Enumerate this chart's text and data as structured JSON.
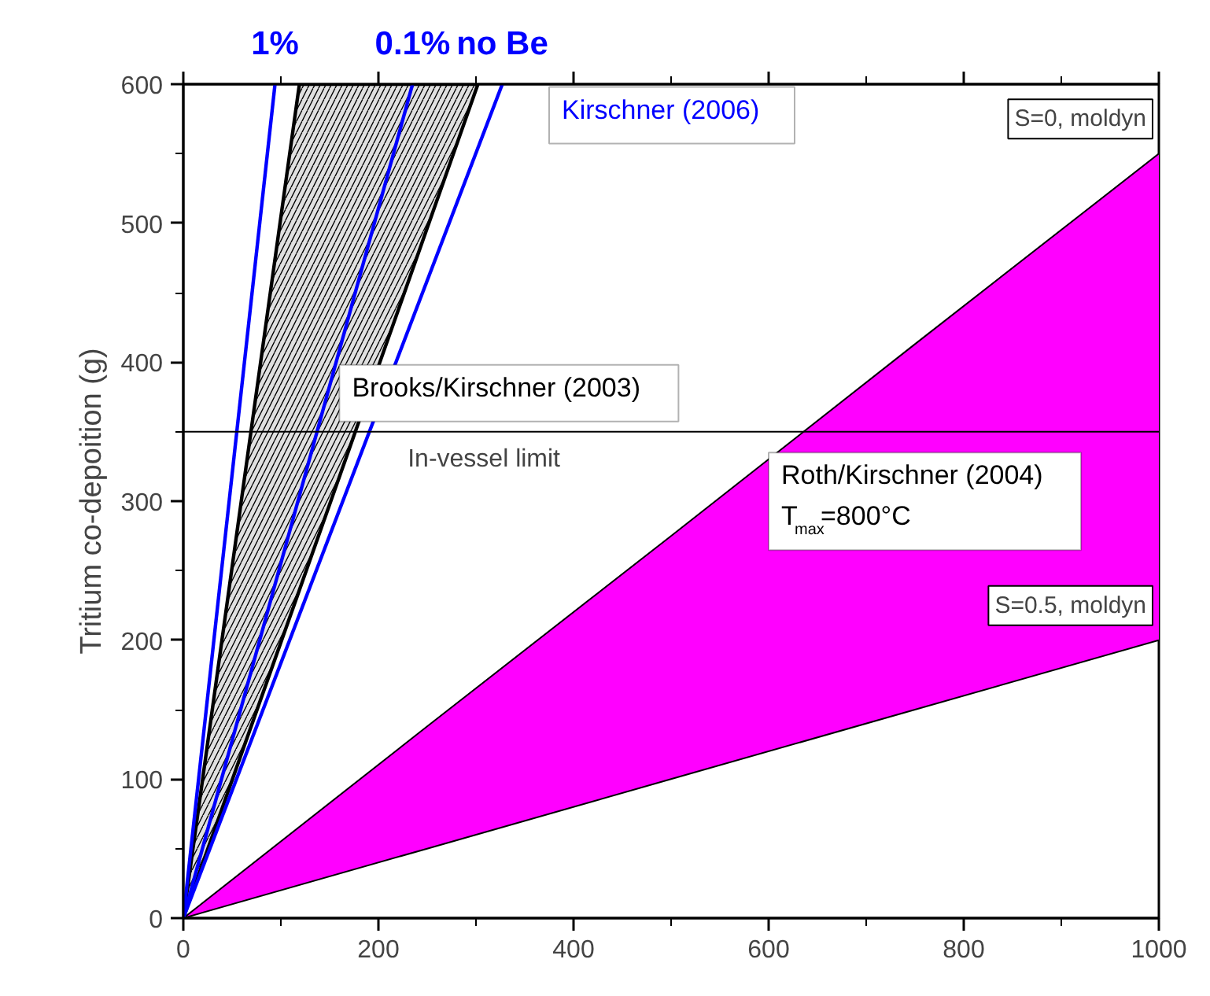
{
  "chart_data": {
    "type": "line",
    "ylabel": "Tritium co-depoition (g)",
    "xlim": [
      0,
      1000
    ],
    "xticks": [
      0,
      200,
      400,
      600,
      800,
      1000
    ],
    "ylim": [
      0,
      600
    ],
    "yticks": [
      0,
      100,
      200,
      300,
      400,
      500,
      600
    ],
    "grid": false,
    "legend": false,
    "marker": "none",
    "line_style": "solid",
    "ref_lines": [
      {
        "axis": "y",
        "value": 350,
        "label": "In-vessel limit",
        "color": "#000000"
      }
    ],
    "annotations": [
      "Kirschner (2006)",
      "Brooks/Kirschner (2003)",
      "Roth/Kirschner (2004)\nT$_{max}$=800°C",
      {
        "text": "S=0, moldyn",
        "x": 1000,
        "y": 550
      },
      {
        "text": "S=0.5, moldyn",
        "x": 1000,
        "y": 200
      }
    ],
    "series": [
      {
        "type": "area",
        "color": "#000000",
        "x": [
          0,
          60,
          119,
          200,
          302
        ],
        "values": [
          null,
          null,
          null,
          null,
          null
        ],
        "lower": [
          0,
          119,
          236,
          397,
          600
        ],
        "upper": [
          0,
          303,
          600,
          600,
          600
        ]
      },
      {
        "type": "area",
        "color": "#ff00ff",
        "x": [
          0,
          250,
          500,
          750,
          1000
        ],
        "values": [
          null,
          null,
          null,
          null,
          null
        ],
        "lower": [
          0,
          50,
          100,
          150,
          200
        ],
        "upper": [
          0,
          138,
          275,
          413,
          550
        ]
      },
      {
        "name": "1%",
        "color": "#0000ff",
        "x": [
          0,
          94
        ],
        "values": [
          0,
          600
        ]
      },
      {
        "name": "0.1%",
        "color": "#0000ff",
        "x": [
          0,
          235
        ],
        "values": [
          0,
          600
        ]
      },
      {
        "name": "no Be",
        "color": "#0000ff",
        "x": [
          0,
          327
        ],
        "values": [
          0,
          600
        ]
      }
    ]
  }
}
